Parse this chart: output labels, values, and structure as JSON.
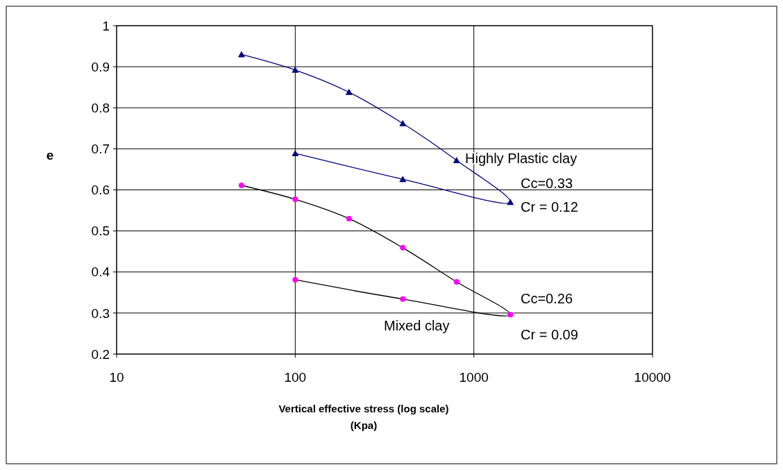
{
  "chart_data": {
    "type": "line",
    "xlabel": "Vertical effective stress (log scale)\n(Kpa)",
    "ylabel": "e",
    "log": "x",
    "grid": true,
    "xlim": [
      10,
      10000
    ],
    "xticks": [
      10,
      100,
      1000,
      10000
    ],
    "ylim": [
      0.2,
      1
    ],
    "yticks": [
      0.2,
      0.3,
      0.4,
      0.5,
      0.6,
      0.7,
      0.8,
      0.9,
      1
    ],
    "series": [
      {
        "color": "#000080",
        "marker": "triangle",
        "x": [
          50,
          100,
          200,
          400,
          800,
          1600,
          400,
          100
        ],
        "values": [
          0.93,
          0.892,
          0.838,
          0.762,
          0.672,
          0.57,
          0.626,
          0.689
        ],
        "colors": [
          "#000080",
          "#000080",
          "#000080",
          "#000080",
          "#000080",
          "#000080",
          "#000080",
          "#000080"
        ]
      },
      {
        "color": "#000000",
        "marker": "circle",
        "x": [
          50,
          100,
          200,
          400,
          800,
          1600,
          400,
          100
        ],
        "values": [
          0.611,
          0.577,
          0.53,
          0.459,
          0.376,
          0.296,
          0.334,
          0.381
        ],
        "colors": [
          "#ff00ff",
          "#ff00ff",
          "#ff00ff",
          "#ff00ff",
          "#ff00ff",
          "#ff00ff",
          "#ff00ff",
          "#ff00ff"
        ]
      }
    ],
    "annotations": [
      "Highly Plastic clay",
      "Cc=0.33",
      "Cr = 0.12",
      "Cc=0.26",
      "Mixed clay",
      "Cr = 0.09"
    ]
  }
}
